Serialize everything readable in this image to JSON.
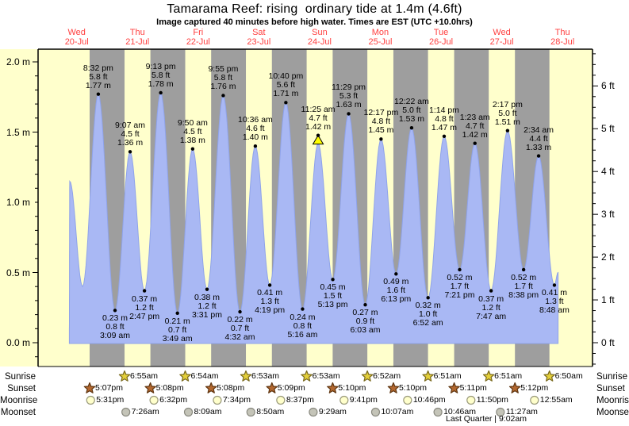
{
  "title": "Tamarama Reef: rising  ordinary tide at 1.4m (4.6ft)",
  "subtitle": "Image captured 40 minutes before high water. Times are EST (UTC +10.0hrs)",
  "colors": {
    "plot_bg": "#ffffcc",
    "night_band": "#9e9e9e",
    "tide_fill": "#a9b8f4",
    "tide_stroke": "#8fa3ea",
    "day_label": "#ff4040",
    "marker_fill": "#ffff00",
    "text": "#000000",
    "sunrise_star_fill": "#e3cf3a",
    "sunrise_star_stroke": "#79691c",
    "sunset_star_fill": "#b2672f",
    "sunset_star_stroke": "#5f3510",
    "moonrise_fill": "#ffffcc",
    "moonrise_stroke": "#99997a",
    "moonset_fill": "#c4c4b8",
    "moonset_stroke": "#8a8a80"
  },
  "days": [
    {
      "label": "Wed",
      "date": "20-Jul"
    },
    {
      "label": "Thu",
      "date": "21-Jul"
    },
    {
      "label": "Fri",
      "date": "22-Jul"
    },
    {
      "label": "Sat",
      "date": "23-Jul"
    },
    {
      "label": "Sun",
      "date": "24-Jul"
    },
    {
      "label": "Mon",
      "date": "25-Jul"
    },
    {
      "label": "Tue",
      "date": "26-Jul"
    },
    {
      "label": "Wed",
      "date": "27-Jul"
    },
    {
      "label": "Thu",
      "date": "28-Jul"
    }
  ],
  "y_axis": {
    "left_unit": "m",
    "left_labels": [
      {
        "value": 2.0,
        "text": "2.0 m"
      },
      {
        "value": 1.5,
        "text": "1.5 m"
      },
      {
        "value": 1.0,
        "text": "1.0 m"
      },
      {
        "value": 0.5,
        "text": "0.5 m"
      },
      {
        "value": 0.0,
        "text": "0.0 m"
      }
    ],
    "right_unit": "ft",
    "right_labels": [
      {
        "value": 6,
        "text": "6 ft"
      },
      {
        "value": 5,
        "text": "5 ft"
      },
      {
        "value": 4,
        "text": "4 ft"
      },
      {
        "value": 3,
        "text": "3 ft"
      },
      {
        "value": 2,
        "text": "2 ft"
      },
      {
        "value": 1,
        "text": "1 ft"
      },
      {
        "value": 0,
        "text": "0 ft"
      }
    ]
  },
  "chart_data": {
    "type": "area",
    "title": "Tamarama Reef: rising  ordinary tide at 1.4m (4.6ft)",
    "ylabel_left": "m",
    "ylabel_right": "ft",
    "ylim_m": [
      0.0,
      2.0
    ],
    "categories": [
      "Wed 20-Jul",
      "Thu 21-Jul",
      "Fri 22-Jul",
      "Sat 23-Jul",
      "Sun 24-Jul",
      "Mon 25-Jul",
      "Tue 26-Jul",
      "Wed 27-Jul",
      "Thu 28-Jul"
    ],
    "grid": "day columns shaded gray between sunset and sunrise",
    "tide_events": [
      {
        "day": 0,
        "date": "20-Jul",
        "time": "8:32 pm",
        "ft_text": "5.8 ft",
        "m_text": "1.77 m",
        "height_m": 1.77,
        "type": "high",
        "marker": false
      },
      {
        "day": 1,
        "date": "21-Jul",
        "time": "3:09 am",
        "ft_text": "0.8 ft",
        "m_text": "0.23 m",
        "height_m": 0.23,
        "type": "low",
        "marker": false
      },
      {
        "day": 1,
        "date": "21-Jul",
        "time": "9:07 am",
        "ft_text": "4.5 ft",
        "m_text": "1.36 m",
        "height_m": 1.36,
        "type": "high",
        "marker": false
      },
      {
        "day": 1,
        "date": "21-Jul",
        "time": "2:47 pm",
        "ft_text": "1.2 ft",
        "m_text": "0.37 m",
        "height_m": 0.37,
        "type": "low",
        "marker": false
      },
      {
        "day": 1,
        "date": "21-Jul",
        "time": "9:13 pm",
        "ft_text": "5.8 ft",
        "m_text": "1.78 m",
        "height_m": 1.78,
        "type": "high",
        "marker": false
      },
      {
        "day": 2,
        "date": "22-Jul",
        "time": "3:49 am",
        "ft_text": "0.7 ft",
        "m_text": "0.21 m",
        "height_m": 0.21,
        "type": "low",
        "marker": false
      },
      {
        "day": 2,
        "date": "22-Jul",
        "time": "9:50 am",
        "ft_text": "4.5 ft",
        "m_text": "1.38 m",
        "height_m": 1.38,
        "type": "high",
        "marker": false
      },
      {
        "day": 2,
        "date": "22-Jul",
        "time": "3:31 pm",
        "ft_text": "1.2 ft",
        "m_text": "0.38 m",
        "height_m": 0.38,
        "type": "low",
        "marker": false
      },
      {
        "day": 2,
        "date": "22-Jul",
        "time": "9:55 pm",
        "ft_text": "5.8 ft",
        "m_text": "1.76 m",
        "height_m": 1.76,
        "type": "high",
        "marker": false
      },
      {
        "day": 3,
        "date": "23-Jul",
        "time": "4:32 am",
        "ft_text": "0.7 ft",
        "m_text": "0.22 m",
        "height_m": 0.22,
        "type": "low",
        "marker": false
      },
      {
        "day": 3,
        "date": "23-Jul",
        "time": "10:36 am",
        "ft_text": "4.6 ft",
        "m_text": "1.40 m",
        "height_m": 1.4,
        "type": "high",
        "marker": false
      },
      {
        "day": 3,
        "date": "23-Jul",
        "time": "4:19 pm",
        "ft_text": "1.3 ft",
        "m_text": "0.41 m",
        "height_m": 0.41,
        "type": "low",
        "marker": false
      },
      {
        "day": 3,
        "date": "23-Jul",
        "time": "10:40 pm",
        "ft_text": "5.6 ft",
        "m_text": "1.71 m",
        "height_m": 1.71,
        "type": "high",
        "marker": false
      },
      {
        "day": 4,
        "date": "24-Jul",
        "time": "5:16 am",
        "ft_text": "0.8 ft",
        "m_text": "0.24 m",
        "height_m": 0.24,
        "type": "low",
        "marker": false
      },
      {
        "day": 4,
        "date": "24-Jul",
        "time": "11:25 am",
        "ft_text": "4.7 ft",
        "m_text": "1.42 m",
        "height_m": 1.42,
        "type": "high",
        "marker": true
      },
      {
        "day": 4,
        "date": "24-Jul",
        "time": "5:13 pm",
        "ft_text": "1.5 ft",
        "m_text": "0.45 m",
        "height_m": 0.45,
        "type": "low",
        "marker": false
      },
      {
        "day": 4,
        "date": "24-Jul",
        "time": "11:29 pm",
        "ft_text": "5.3 ft",
        "m_text": "1.63 m",
        "height_m": 1.63,
        "type": "high",
        "marker": false
      },
      {
        "day": 5,
        "date": "25-Jul",
        "time": "6:03 am",
        "ft_text": "0.9 ft",
        "m_text": "0.27 m",
        "height_m": 0.27,
        "type": "low",
        "marker": false
      },
      {
        "day": 5,
        "date": "25-Jul",
        "time": "12:17 pm",
        "ft_text": "4.8 ft",
        "m_text": "1.45 m",
        "height_m": 1.45,
        "type": "high",
        "marker": false
      },
      {
        "day": 5,
        "date": "25-Jul",
        "time": "6:13 pm",
        "ft_text": "1.6 ft",
        "m_text": "0.49 m",
        "height_m": 0.49,
        "type": "low",
        "marker": false
      },
      {
        "day": 6,
        "date": "26-Jul",
        "time": "12:22 am",
        "ft_text": "5.0 ft",
        "m_text": "1.53 m",
        "height_m": 1.53,
        "type": "high",
        "marker": false
      },
      {
        "day": 6,
        "date": "26-Jul",
        "time": "6:52 am",
        "ft_text": "1.0 ft",
        "m_text": "0.32 m",
        "height_m": 0.32,
        "type": "low",
        "marker": false
      },
      {
        "day": 6,
        "date": "26-Jul",
        "time": "1:14 pm",
        "ft_text": "4.8 ft",
        "m_text": "1.47 m",
        "height_m": 1.47,
        "type": "high",
        "marker": false
      },
      {
        "day": 6,
        "date": "26-Jul",
        "time": "7:21 pm",
        "ft_text": "1.7 ft",
        "m_text": "0.52 m",
        "height_m": 0.52,
        "type": "low",
        "marker": false
      },
      {
        "day": 7,
        "date": "27-Jul",
        "time": "1:23 am",
        "ft_text": "4.7 ft",
        "m_text": "1.42 m",
        "height_m": 1.42,
        "type": "high",
        "marker": false
      },
      {
        "day": 7,
        "date": "27-Jul",
        "time": "7:47 am",
        "ft_text": "1.2 ft",
        "m_text": "0.37 m",
        "height_m": 0.37,
        "type": "low",
        "marker": false
      },
      {
        "day": 7,
        "date": "27-Jul",
        "time": "2:17 pm",
        "ft_text": "5.0 ft",
        "m_text": "1.51 m",
        "height_m": 1.51,
        "type": "high",
        "marker": false
      },
      {
        "day": 7,
        "date": "27-Jul",
        "time": "8:38 pm",
        "ft_text": "1.7 ft",
        "m_text": "0.52 m",
        "height_m": 0.52,
        "type": "low",
        "marker": false
      },
      {
        "day": 8,
        "date": "28-Jul",
        "time": "2:34 am",
        "ft_text": "4.4 ft",
        "m_text": "1.33 m",
        "height_m": 1.33,
        "type": "high",
        "marker": false
      },
      {
        "day": 8,
        "date": "28-Jul",
        "time": "8:48 am",
        "ft_text": "1.3 ft",
        "m_text": "0.41 m",
        "height_m": 0.41,
        "type": "low",
        "marker": false
      }
    ],
    "unlabeled_curve_points": [
      {
        "day": 0,
        "time": "9:15 am",
        "height_m": 1.15
      },
      {
        "day": 0,
        "time": "2:20 pm",
        "height_m": 0.4
      }
    ],
    "curve_start": {
      "day": 0,
      "time": "9:05 am",
      "height_m": 0.08
    },
    "curve_end": {
      "day": 8,
      "time": "10:15 am",
      "height_m": 0.5
    }
  },
  "astro": {
    "row_labels": [
      "Sunrise",
      "Sunset",
      "Moonrise",
      "Moonset"
    ],
    "sunrise": [
      {
        "day": 1,
        "time": "6:55am"
      },
      {
        "day": 2,
        "time": "6:54am"
      },
      {
        "day": 3,
        "time": "6:53am"
      },
      {
        "day": 4,
        "time": "6:53am"
      },
      {
        "day": 5,
        "time": "6:52am"
      },
      {
        "day": 6,
        "time": "6:51am"
      },
      {
        "day": 7,
        "time": "6:51am"
      },
      {
        "day": 8,
        "time": "6:50am"
      }
    ],
    "sunset": [
      {
        "day": 0,
        "time": "5:07pm"
      },
      {
        "day": 1,
        "time": "5:08pm"
      },
      {
        "day": 2,
        "time": "5:08pm"
      },
      {
        "day": 3,
        "time": "5:09pm"
      },
      {
        "day": 4,
        "time": "5:10pm"
      },
      {
        "day": 5,
        "time": "5:10pm"
      },
      {
        "day": 6,
        "time": "5:11pm"
      },
      {
        "day": 7,
        "time": "5:12pm"
      }
    ],
    "moonrise": [
      {
        "day": 0,
        "time": "5:31pm"
      },
      {
        "day": 1,
        "time": "6:32pm"
      },
      {
        "day": 2,
        "time": "7:34pm"
      },
      {
        "day": 3,
        "time": "8:37pm"
      },
      {
        "day": 4,
        "time": "9:41pm"
      },
      {
        "day": 5,
        "time": "10:46pm"
      },
      {
        "day": 6,
        "time": "11:50pm"
      },
      {
        "day": 8,
        "time": "12:55am"
      }
    ],
    "moonset": [
      {
        "day": 1,
        "time": "7:26am"
      },
      {
        "day": 2,
        "time": "8:09am"
      },
      {
        "day": 3,
        "time": "8:50am"
      },
      {
        "day": 4,
        "time": "9:29am"
      },
      {
        "day": 5,
        "time": "10:07am"
      },
      {
        "day": 6,
        "time": "10:46am"
      },
      {
        "day": 7,
        "time": "11:27am"
      }
    ],
    "footer": "Last Quarter | 9:02am"
  }
}
